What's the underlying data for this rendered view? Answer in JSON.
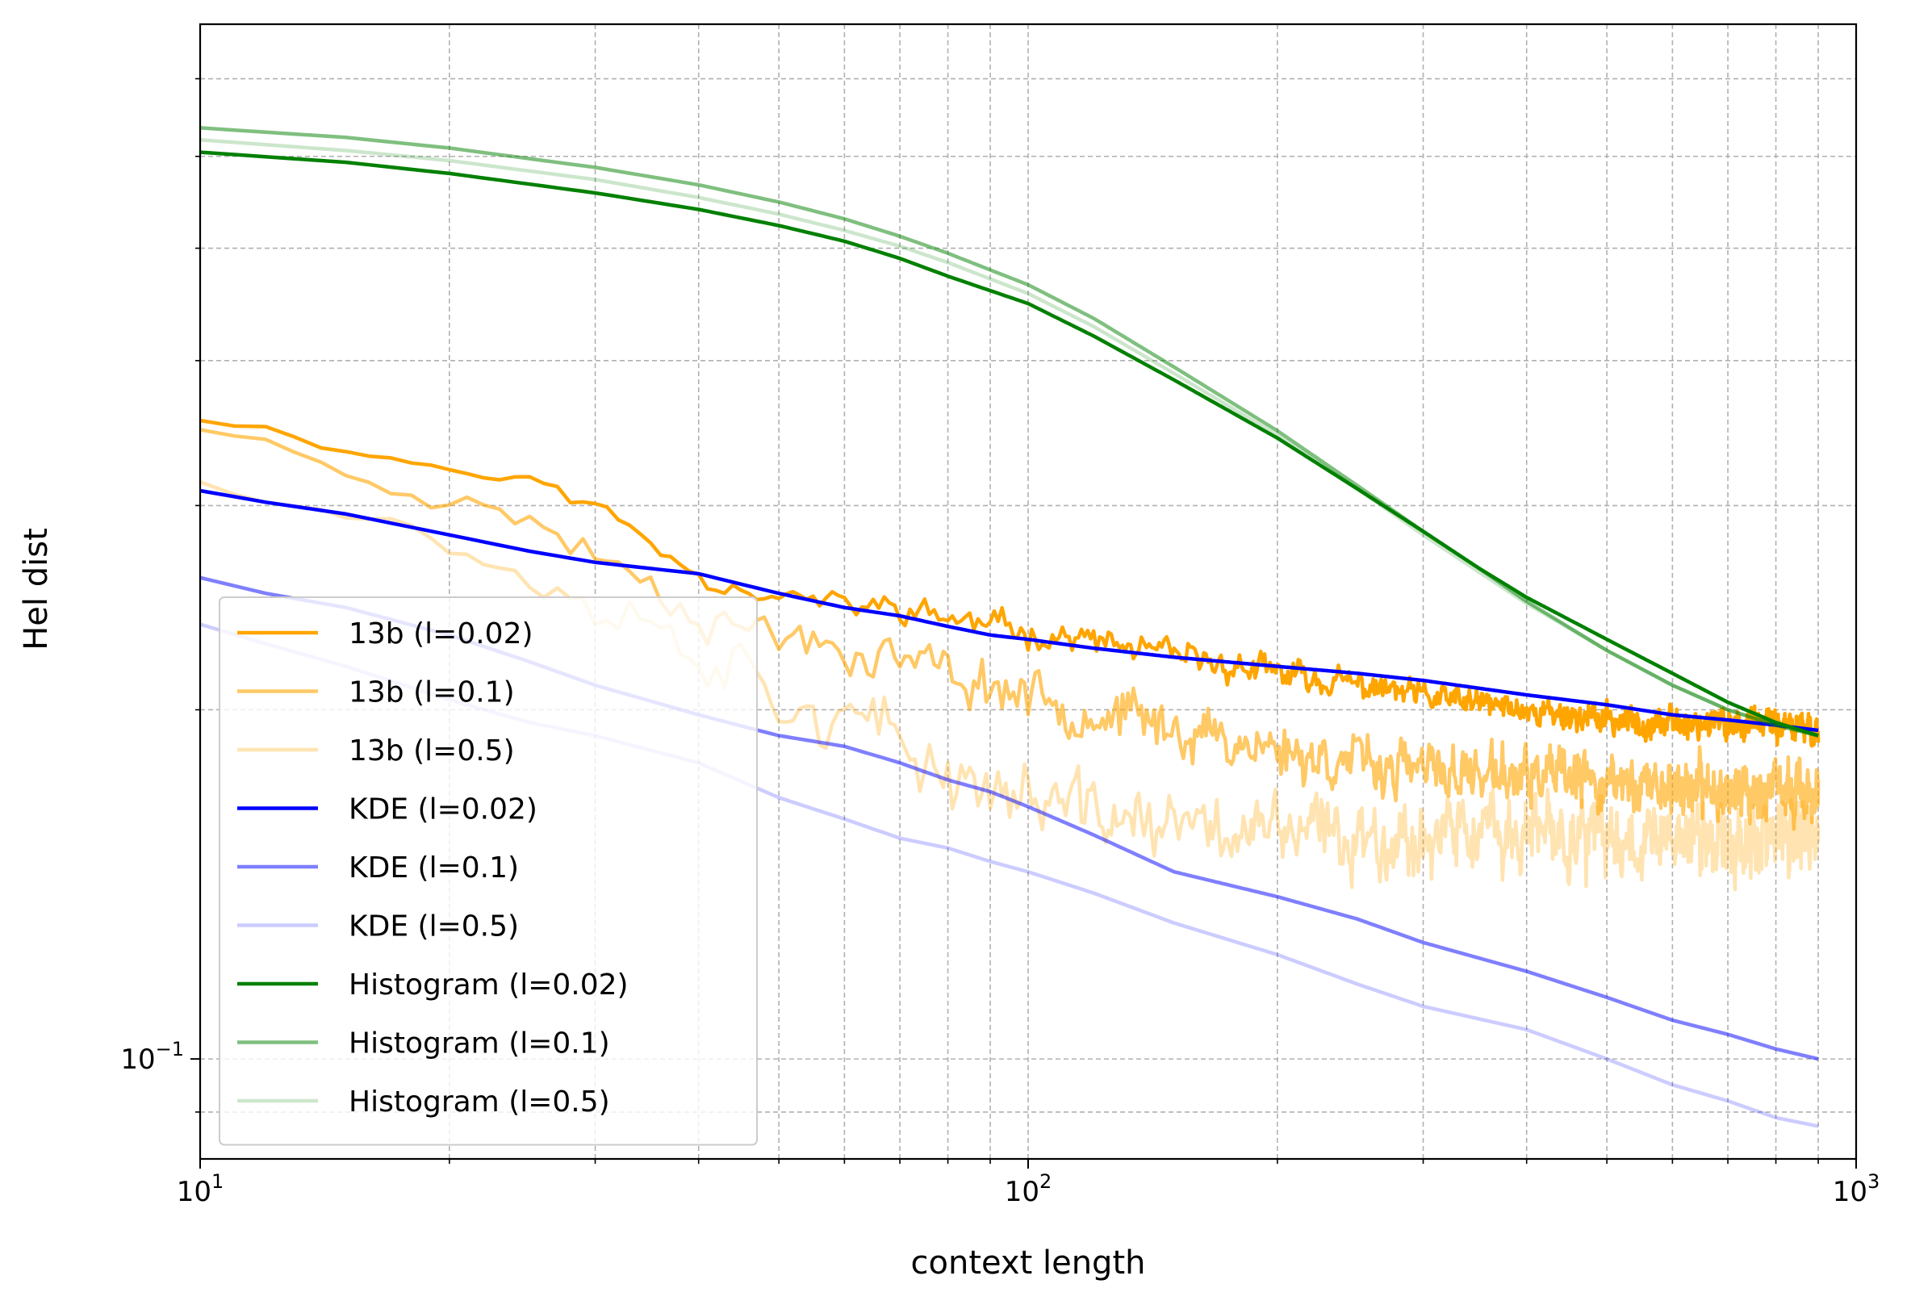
{
  "chart_data": {
    "type": "line",
    "xlabel": "context length",
    "ylabel": "Hel dist",
    "xscale": "log",
    "yscale": "log",
    "xlim": [
      10,
      1000
    ],
    "ylim": [
      0.082,
      0.78
    ],
    "grid": true,
    "legend_position": "lower-left",
    "x_ticks": [
      {
        "value": 10,
        "base": "10",
        "exp": "1"
      },
      {
        "value": 100,
        "base": "10",
        "exp": "2"
      },
      {
        "value": 1000,
        "base": "10",
        "exp": "3"
      }
    ],
    "y_ticks": [
      {
        "value": 0.1,
        "base": "10",
        "exp": "−1"
      }
    ],
    "series": [
      {
        "name": "13b (l=0.02)",
        "color": "#ffa500",
        "opacity": 1.0,
        "noise": 0.03,
        "seed": 11,
        "x": [
          10,
          12,
          15,
          20,
          25,
          30,
          40,
          50,
          60,
          70,
          80,
          90,
          100,
          120,
          150,
          200,
          250,
          300,
          400,
          500,
          600,
          700,
          800,
          900
        ],
        "y": [
          0.356,
          0.35,
          0.335,
          0.323,
          0.315,
          0.3,
          0.262,
          0.252,
          0.245,
          0.245,
          0.24,
          0.236,
          0.234,
          0.229,
          0.222,
          0.215,
          0.21,
          0.205,
          0.2,
          0.196,
          0.195,
          0.195,
          0.194,
          0.192
        ]
      },
      {
        "name": "13b (l=0.1)",
        "color": "#ffa500",
        "opacity": 0.6,
        "noise": 0.055,
        "seed": 23,
        "x": [
          10,
          12,
          15,
          20,
          25,
          30,
          40,
          50,
          60,
          70,
          80,
          100,
          120,
          150,
          200,
          250,
          300,
          400,
          500,
          600,
          700,
          800,
          900
        ],
        "y": [
          0.35,
          0.34,
          0.322,
          0.305,
          0.29,
          0.275,
          0.245,
          0.232,
          0.228,
          0.222,
          0.215,
          0.207,
          0.2,
          0.193,
          0.185,
          0.18,
          0.177,
          0.175,
          0.173,
          0.172,
          0.171,
          0.17,
          0.17
        ]
      },
      {
        "name": "13b (l=0.5)",
        "color": "#ffa500",
        "opacity": 0.3,
        "noise": 0.075,
        "seed": 37,
        "x": [
          10,
          12,
          15,
          20,
          25,
          30,
          40,
          50,
          60,
          70,
          80,
          100,
          120,
          150,
          200,
          250,
          300,
          400,
          500,
          600,
          700,
          800,
          900
        ],
        "y": [
          0.315,
          0.308,
          0.298,
          0.28,
          0.262,
          0.25,
          0.228,
          0.21,
          0.195,
          0.185,
          0.178,
          0.168,
          0.163,
          0.158,
          0.157,
          0.156,
          0.156,
          0.156,
          0.155,
          0.155,
          0.155,
          0.155,
          0.155
        ]
      },
      {
        "name": "KDE (l=0.02)",
        "color": "#0000ff",
        "opacity": 1.0,
        "noise": 0.0,
        "seed": 1,
        "x": [
          10,
          12,
          15,
          20,
          25,
          30,
          40,
          50,
          60,
          70,
          80,
          90,
          100,
          120,
          150,
          200,
          250,
          300,
          400,
          500,
          600,
          700,
          800,
          900
        ],
        "y": [
          0.309,
          0.302,
          0.295,
          0.283,
          0.274,
          0.268,
          0.262,
          0.252,
          0.245,
          0.241,
          0.236,
          0.232,
          0.23,
          0.226,
          0.222,
          0.218,
          0.215,
          0.212,
          0.206,
          0.202,
          0.198,
          0.196,
          0.194,
          0.192
        ]
      },
      {
        "name": "KDE (l=0.1)",
        "color": "#0000ff",
        "opacity": 0.5,
        "noise": 0.0,
        "seed": 2,
        "x": [
          10,
          12,
          15,
          20,
          25,
          30,
          40,
          50,
          60,
          70,
          80,
          90,
          100,
          120,
          150,
          200,
          250,
          300,
          400,
          500,
          600,
          700,
          800,
          900
        ],
        "y": [
          0.26,
          0.252,
          0.245,
          0.232,
          0.22,
          0.21,
          0.198,
          0.19,
          0.186,
          0.18,
          0.174,
          0.17,
          0.165,
          0.156,
          0.145,
          0.138,
          0.132,
          0.126,
          0.119,
          0.113,
          0.108,
          0.105,
          0.102,
          0.1
        ]
      },
      {
        "name": "KDE (l=0.5)",
        "color": "#0000ff",
        "opacity": 0.2,
        "noise": 0.0,
        "seed": 3,
        "x": [
          10,
          12,
          15,
          20,
          25,
          30,
          40,
          50,
          60,
          70,
          80,
          90,
          100,
          120,
          150,
          200,
          250,
          300,
          400,
          500,
          600,
          700,
          800,
          900
        ],
        "y": [
          0.237,
          0.228,
          0.218,
          0.204,
          0.195,
          0.19,
          0.18,
          0.168,
          0.161,
          0.155,
          0.152,
          0.148,
          0.145,
          0.139,
          0.131,
          0.123,
          0.116,
          0.111,
          0.106,
          0.1,
          0.095,
          0.092,
          0.089,
          0.0875
        ]
      },
      {
        "name": "Histogram (l=0.02)",
        "color": "#008000",
        "opacity": 1.0,
        "noise": 0.0,
        "seed": 4,
        "x": [
          10,
          15,
          20,
          30,
          40,
          50,
          60,
          70,
          80,
          100,
          120,
          150,
          200,
          250,
          300,
          350,
          400,
          500,
          600,
          700,
          800,
          900
        ],
        "y": [
          0.605,
          0.593,
          0.58,
          0.558,
          0.54,
          0.523,
          0.507,
          0.49,
          0.473,
          0.448,
          0.42,
          0.385,
          0.343,
          0.31,
          0.285,
          0.265,
          0.25,
          0.23,
          0.215,
          0.203,
          0.195,
          0.19
        ]
      },
      {
        "name": "Histogram (l=0.1)",
        "color": "#008000",
        "opacity": 0.5,
        "noise": 0.0,
        "seed": 5,
        "x": [
          10,
          15,
          20,
          30,
          40,
          50,
          60,
          70,
          80,
          100,
          120,
          150,
          200,
          250,
          300,
          350,
          400,
          500,
          600,
          700,
          800,
          900
        ],
        "y": [
          0.635,
          0.623,
          0.61,
          0.587,
          0.567,
          0.548,
          0.53,
          0.512,
          0.495,
          0.465,
          0.435,
          0.395,
          0.348,
          0.312,
          0.285,
          0.265,
          0.248,
          0.225,
          0.21,
          0.2,
          0.194,
          0.19
        ]
      },
      {
        "name": "Histogram (l=0.5)",
        "color": "#008000",
        "opacity": 0.2,
        "noise": 0.0,
        "seed": 6,
        "x": [
          10,
          15,
          20,
          30,
          40,
          50,
          60,
          70,
          80,
          100,
          120,
          150,
          200,
          250,
          300,
          350,
          400,
          500,
          600,
          700,
          800,
          900
        ],
        "y": [
          0.62,
          0.607,
          0.595,
          0.573,
          0.553,
          0.535,
          0.518,
          0.502,
          0.486,
          0.457,
          0.428,
          0.39,
          0.345,
          0.31,
          0.283,
          0.263,
          0.247,
          0.225,
          0.21,
          0.2,
          0.194,
          0.19
        ]
      }
    ]
  }
}
